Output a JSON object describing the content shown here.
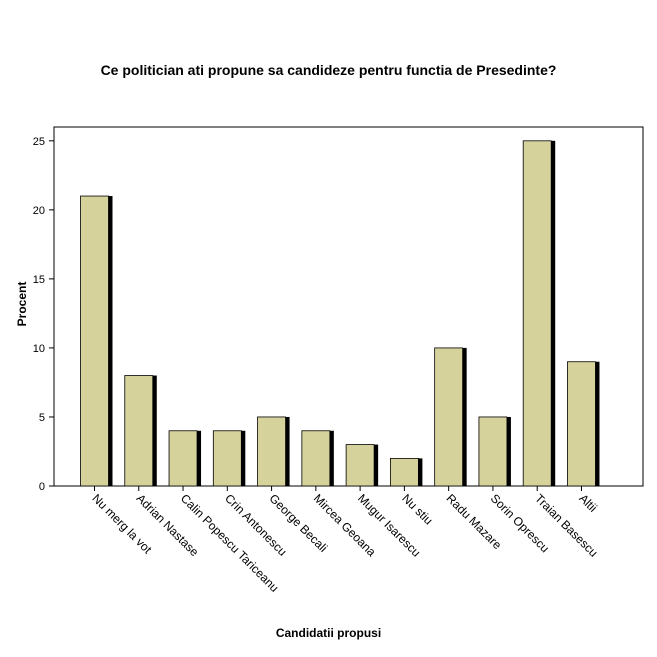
{
  "chart_data": {
    "type": "bar",
    "title": "Ce politician ati propune sa candideze pentru functia de Presedinte?",
    "xlabel": "Candidatii propusi",
    "ylabel": "Procent",
    "categories": [
      "Nu merg la vot",
      "Adrian Nastase",
      "Calin Popescu Tariceanu",
      "Crin Antonescu",
      "George Becali",
      "Mircea Geoana",
      "Mugur Isarescu",
      "Nu stiu",
      "Radu Mazare",
      "Sorin Oprescu",
      "Traian Basescu",
      "Altii"
    ],
    "values": [
      21,
      8,
      4,
      4,
      5,
      4,
      3,
      2,
      10,
      5,
      25,
      9
    ],
    "ylim": [
      0,
      26
    ],
    "yticks": [
      0,
      5,
      10,
      15,
      20,
      25
    ],
    "grid": false,
    "bar_color": "#d6d29c",
    "shadow_color": "#000000"
  }
}
